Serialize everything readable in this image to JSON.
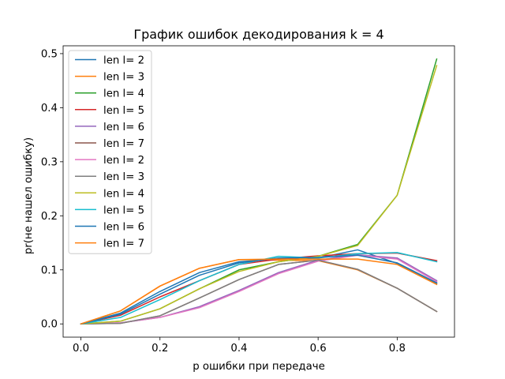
{
  "chart_data": {
    "type": "line",
    "title": "График ошибок декодирования k = 4",
    "xlabel": "p ошибки при передаче",
    "ylabel": "pr(не нашел ошибку)",
    "xlim": [
      -0.045,
      0.945
    ],
    "ylim": [
      -0.0245,
      0.5145
    ],
    "xticks": [
      0.0,
      0.2,
      0.4,
      0.6,
      0.8
    ],
    "xtick_labels": [
      "0.0",
      "0.2",
      "0.4",
      "0.6",
      "0.8"
    ],
    "yticks": [
      0.0,
      0.1,
      0.2,
      0.3,
      0.4,
      0.5
    ],
    "ytick_labels": [
      "0.0",
      "0.1",
      "0.2",
      "0.3",
      "0.4",
      "0.5"
    ],
    "grid": false,
    "legend_position": "upper-left",
    "x": [
      0.0,
      0.1,
      0.2,
      0.3,
      0.4,
      0.5,
      0.6,
      0.7,
      0.8,
      0.9
    ],
    "series": [
      {
        "name": "len l= 2",
        "color": "#1f77b4",
        "values": [
          0.0,
          0.02,
          0.06,
          0.095,
          0.115,
          0.12,
          0.122,
          0.137,
          0.112,
          0.075
        ]
      },
      {
        "name": "len l= 3",
        "color": "#ff7f0e",
        "values": [
          0.0,
          0.024,
          0.07,
          0.103,
          0.119,
          0.118,
          0.117,
          0.1,
          0.066,
          0.023
        ]
      },
      {
        "name": "len l= 4",
        "color": "#2ca02c",
        "values": [
          0.0,
          0.005,
          0.028,
          0.065,
          0.1,
          0.115,
          0.125,
          0.147,
          0.238,
          0.49
        ]
      },
      {
        "name": "len l= 5",
        "color": "#d62728",
        "values": [
          0.0,
          0.016,
          0.05,
          0.08,
          0.11,
          0.12,
          0.126,
          0.13,
          0.131,
          0.117
        ]
      },
      {
        "name": "len l= 6",
        "color": "#9467bd",
        "values": [
          0.0,
          0.002,
          0.012,
          0.032,
          0.062,
          0.095,
          0.118,
          0.128,
          0.122,
          0.08
        ]
      },
      {
        "name": "len l= 7",
        "color": "#8c564b",
        "values": [
          0.0,
          0.001,
          0.015,
          0.048,
          0.082,
          0.11,
          0.118,
          0.101,
          0.066,
          0.023
        ]
      },
      {
        "name": "len l= 2",
        "color": "#e377c2",
        "values": [
          0.0,
          0.002,
          0.012,
          0.03,
          0.06,
          0.093,
          0.116,
          0.127,
          0.12,
          0.078
        ]
      },
      {
        "name": "len l= 3",
        "color": "#7f7f7f",
        "values": [
          0.0,
          0.001,
          0.015,
          0.048,
          0.082,
          0.11,
          0.118,
          0.101,
          0.066,
          0.023
        ]
      },
      {
        "name": "len l= 4",
        "color": "#bcbd22",
        "values": [
          0.0,
          0.005,
          0.028,
          0.065,
          0.097,
          0.115,
          0.125,
          0.145,
          0.238,
          0.478
        ]
      },
      {
        "name": "len l= 5",
        "color": "#17becf",
        "values": [
          0.0,
          0.012,
          0.045,
          0.08,
          0.11,
          0.125,
          0.122,
          0.13,
          0.132,
          0.115
        ]
      },
      {
        "name": "len l= 6",
        "color": "#1f77b4",
        "values": [
          0.0,
          0.018,
          0.055,
          0.09,
          0.113,
          0.122,
          0.123,
          0.127,
          0.113,
          0.076
        ]
      },
      {
        "name": "len l= 7",
        "color": "#ff7f0e",
        "values": [
          0.0,
          0.024,
          0.07,
          0.103,
          0.119,
          0.12,
          0.12,
          0.12,
          0.11,
          0.073
        ]
      }
    ]
  }
}
